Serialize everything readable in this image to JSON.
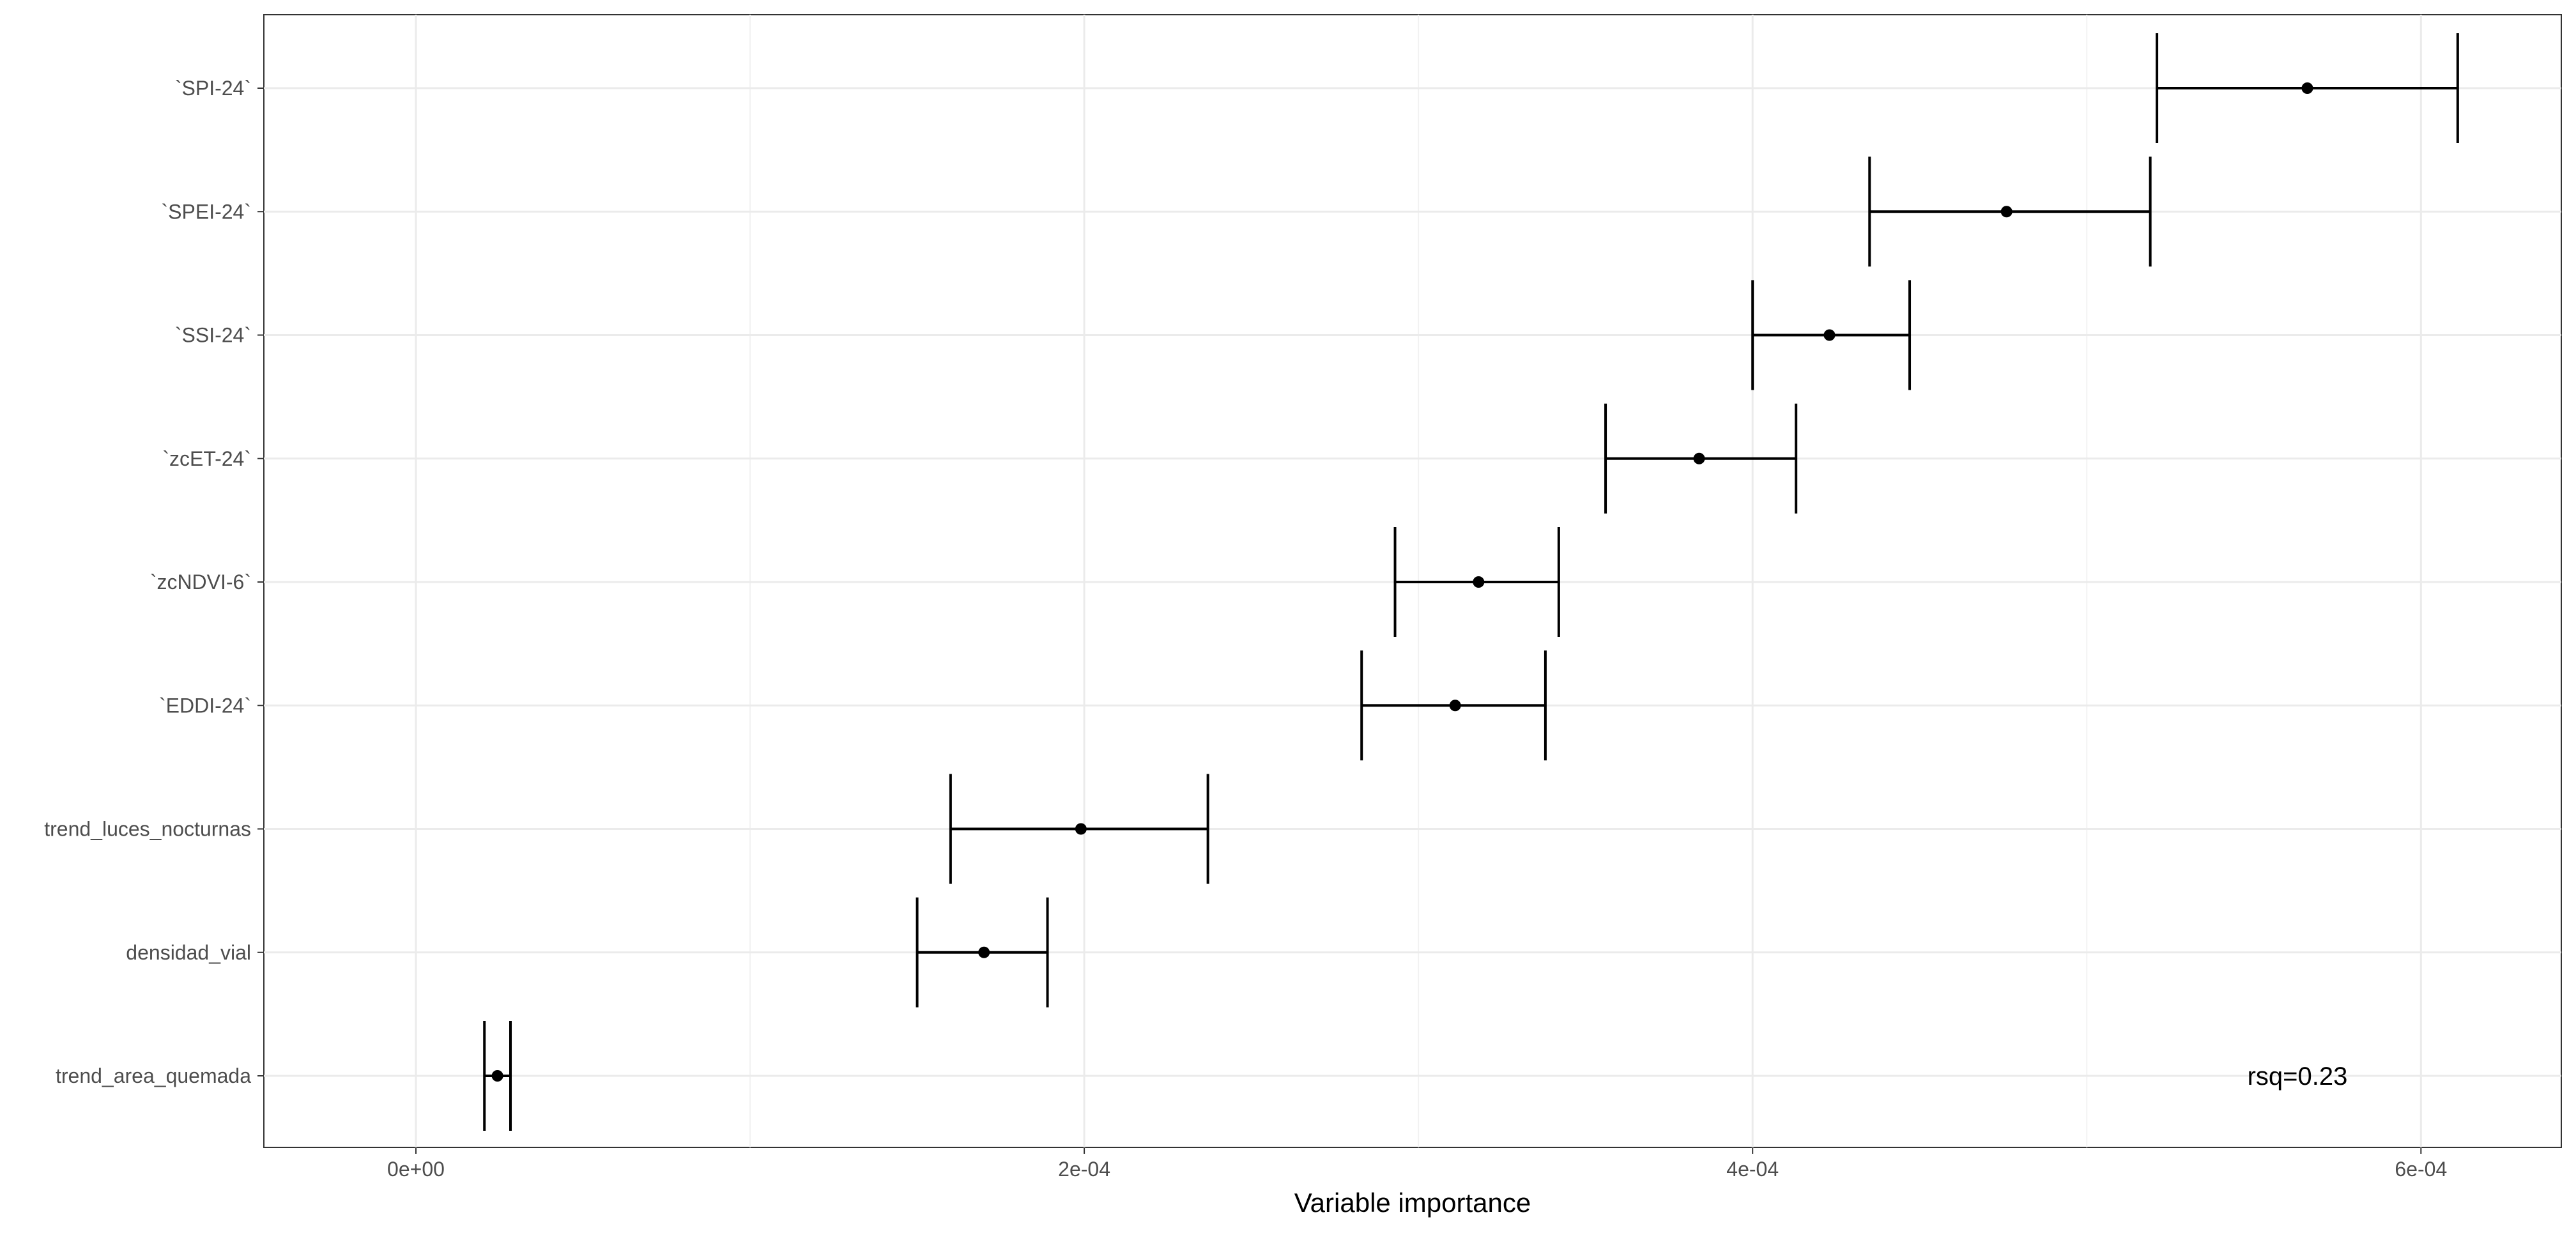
{
  "chart_data": {
    "type": "dot-errorbar",
    "xlabel": "Variable importance",
    "ylabel": "",
    "xlim": [
      -4.55e-05,
      0.000642
    ],
    "x_ticks": [
      0,
      0.0002,
      0.0004,
      0.0006
    ],
    "x_tick_labels": [
      "0e+00",
      "2e-04",
      "4e-04",
      "6e-04"
    ],
    "grid": true,
    "annotation": "rsq=0.23",
    "categories": [
      "`SPI-24`",
      "`SPEI-24`",
      "`SSI-24`",
      "`zcET-24`",
      "`zcNDVI-6`",
      "`EDDI-24`",
      "trend_luces_nocturnas",
      "densidad_vial",
      "trend_area_quemada"
    ],
    "values": [
      0.000566,
      0.000476,
      0.000423,
      0.000384,
      0.000318,
      0.000311,
      0.000199,
      0.00017,
      2.44e-05
    ],
    "lower": [
      0.000521,
      0.000435,
      0.0004,
      0.000356,
      0.000293,
      0.000283,
      0.00016,
      0.00015,
      2.05e-05
    ],
    "upper": [
      0.000611,
      0.000519,
      0.000447,
      0.000413,
      0.000342,
      0.000338,
      0.000237,
      0.000189,
      2.83e-05
    ]
  }
}
